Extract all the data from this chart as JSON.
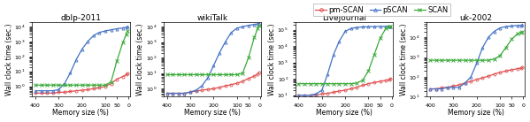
{
  "titles": [
    "dblp-2011",
    "wikiTalk",
    "Livejournal",
    "uk-2002"
  ],
  "xlabel": "Memory size (%)",
  "ylabel": "Wall clock time (sec.)",
  "legend_labels": [
    "pm-SCAN",
    "pSCAN",
    "SCAN"
  ],
  "pm_color": "#e05050",
  "pscan_color": "#4472c4",
  "scan_color": "#3aaa3a",
  "bg_color": "#ffffff",
  "title_fontsize": 6.5,
  "axis_fontsize": 5.5,
  "tick_fontsize": 4.5,
  "legend_fontsize": 6.0,
  "linewidth": 0.9,
  "markersize": 2.2,
  "dblp2011": {
    "pmSCAN_x": [
      400,
      375,
      350,
      325,
      300,
      275,
      250,
      225,
      200,
      175,
      150,
      125,
      100,
      75,
      50,
      25,
      10,
      5
    ],
    "pmSCAN_y": [
      0.35,
      0.35,
      0.35,
      0.35,
      0.4,
      0.4,
      0.45,
      0.5,
      0.55,
      0.6,
      0.7,
      0.8,
      1.0,
      1.5,
      3.0,
      4.5,
      6.0,
      7.0
    ],
    "pSCAN_x": [
      400,
      375,
      350,
      325,
      300,
      275,
      250,
      225,
      200,
      175,
      150,
      125,
      100,
      75,
      50,
      25,
      10,
      5
    ],
    "pSCAN_y": [
      0.5,
      0.5,
      0.5,
      0.5,
      0.6,
      1.5,
      8.0,
      60.0,
      300.0,
      1000.0,
      2500.0,
      4000.0,
      5000.0,
      6000.0,
      7000.0,
      8000.0,
      9000.0,
      9500.0
    ],
    "SCAN_x": [
      400,
      375,
      350,
      325,
      300,
      275,
      250,
      225,
      200,
      175,
      150,
      125,
      100,
      75,
      50,
      25,
      10,
      5
    ],
    "SCAN_y": [
      1.2,
      1.2,
      1.2,
      1.2,
      1.2,
      1.2,
      1.2,
      1.2,
      1.2,
      1.2,
      1.2,
      1.2,
      1.2,
      2.0,
      50.0,
      800.0,
      3000.0,
      5000.0
    ],
    "ylim": [
      0.2,
      20000
    ]
  },
  "wikiTalk": {
    "pmSCAN_x": [
      400,
      375,
      350,
      325,
      300,
      275,
      250,
      225,
      200,
      175,
      150,
      125,
      100,
      75,
      50,
      25,
      10,
      5
    ],
    "pmSCAN_y": [
      0.5,
      0.5,
      0.5,
      0.5,
      0.6,
      0.7,
      0.8,
      0.9,
      1.0,
      1.2,
      1.5,
      1.8,
      2.2,
      3.0,
      4.5,
      6.5,
      9.0,
      11.0
    ],
    "pSCAN_x": [
      400,
      375,
      350,
      325,
      300,
      275,
      250,
      225,
      200,
      175,
      150,
      125,
      100,
      75,
      50,
      25,
      10,
      5
    ],
    "pSCAN_y": [
      0.5,
      0.5,
      0.5,
      0.5,
      0.6,
      0.8,
      1.5,
      5.0,
      30.0,
      200.0,
      1000.0,
      4000.0,
      8000.0,
      10000.0,
      12000.0,
      14000.0,
      15000.0,
      16000.0
    ],
    "SCAN_x": [
      400,
      375,
      350,
      325,
      300,
      275,
      250,
      225,
      200,
      175,
      150,
      125,
      100,
      75,
      50,
      25,
      10,
      5
    ],
    "SCAN_y": [
      8.0,
      8.0,
      8.0,
      8.0,
      8.0,
      8.0,
      8.0,
      8.0,
      8.0,
      8.0,
      8.0,
      8.0,
      8.0,
      10.0,
      100.0,
      2000.0,
      8000.0,
      12000.0
    ],
    "ylim": [
      0.3,
      20000
    ]
  },
  "livejournal": {
    "pmSCAN_x": [
      400,
      375,
      350,
      325,
      300,
      275,
      250,
      225,
      200,
      175,
      150,
      125,
      100,
      75,
      50,
      25,
      10,
      5
    ],
    "pmSCAN_y": [
      10.0,
      10.0,
      10.0,
      10.0,
      12.0,
      13.0,
      15.0,
      18.0,
      20.0,
      25.0,
      30.0,
      40.0,
      50.0,
      60.0,
      70.0,
      80.0,
      90.0,
      100.0
    ],
    "pSCAN_x": [
      400,
      375,
      350,
      325,
      300,
      275,
      250,
      225,
      200,
      175,
      150,
      125,
      100,
      75,
      50,
      25,
      10,
      5
    ],
    "pSCAN_y": [
      10.0,
      10.0,
      10.0,
      12.0,
      20.0,
      200.0,
      3000.0,
      20000.0,
      80000.0,
      120000.0,
      140000.0,
      150000.0,
      155000.0,
      158000.0,
      160000.0,
      162000.0,
      163000.0,
      164000.0
    ],
    "SCAN_x": [
      400,
      375,
      350,
      325,
      300,
      275,
      250,
      225,
      200,
      175,
      150,
      125,
      100,
      75,
      50,
      25,
      10,
      5
    ],
    "SCAN_y": [
      50.0,
      50.0,
      50.0,
      50.0,
      50.0,
      50.0,
      50.0,
      50.0,
      50.0,
      50.0,
      55.0,
      80.0,
      300.0,
      3000.0,
      30000.0,
      120000.0,
      150000.0,
      160000.0
    ],
    "ylim": [
      8,
      300000
    ]
  },
  "uk2002": {
    "pmSCAN_x": [
      400,
      375,
      350,
      325,
      300,
      275,
      250,
      225,
      200,
      175,
      150,
      125,
      100,
      75,
      50,
      25,
      10,
      5
    ],
    "pmSCAN_y": [
      25.0,
      25.0,
      28.0,
      30.0,
      35.0,
      40.0,
      50.0,
      60.0,
      75.0,
      90.0,
      110.0,
      140.0,
      170.0,
      200.0,
      230.0,
      260.0,
      280.0,
      300.0
    ],
    "pSCAN_x": [
      400,
      375,
      350,
      325,
      300,
      275,
      250,
      225,
      200,
      175,
      150,
      125,
      100,
      75,
      50,
      25,
      10,
      5
    ],
    "pSCAN_y": [
      25.0,
      25.0,
      25.0,
      30.0,
      30.0,
      30.0,
      50.0,
      100.0,
      500.0,
      3000.0,
      10000.0,
      20000.0,
      30000.0,
      35000.0,
      38000.0,
      40000.0,
      41000.0,
      42000.0
    ],
    "SCAN_x": [
      400,
      375,
      350,
      325,
      300,
      275,
      250,
      225,
      200,
      175,
      150,
      125,
      100,
      75,
      50,
      25,
      10,
      5
    ],
    "SCAN_y": [
      700.0,
      700.0,
      700.0,
      700.0,
      700.0,
      700.0,
      700.0,
      700.0,
      700.0,
      700.0,
      700.0,
      800.0,
      1200.0,
      3000.0,
      8000.0,
      15000.0,
      18000.0,
      20000.0
    ],
    "ylim": [
      10,
      60000
    ]
  }
}
